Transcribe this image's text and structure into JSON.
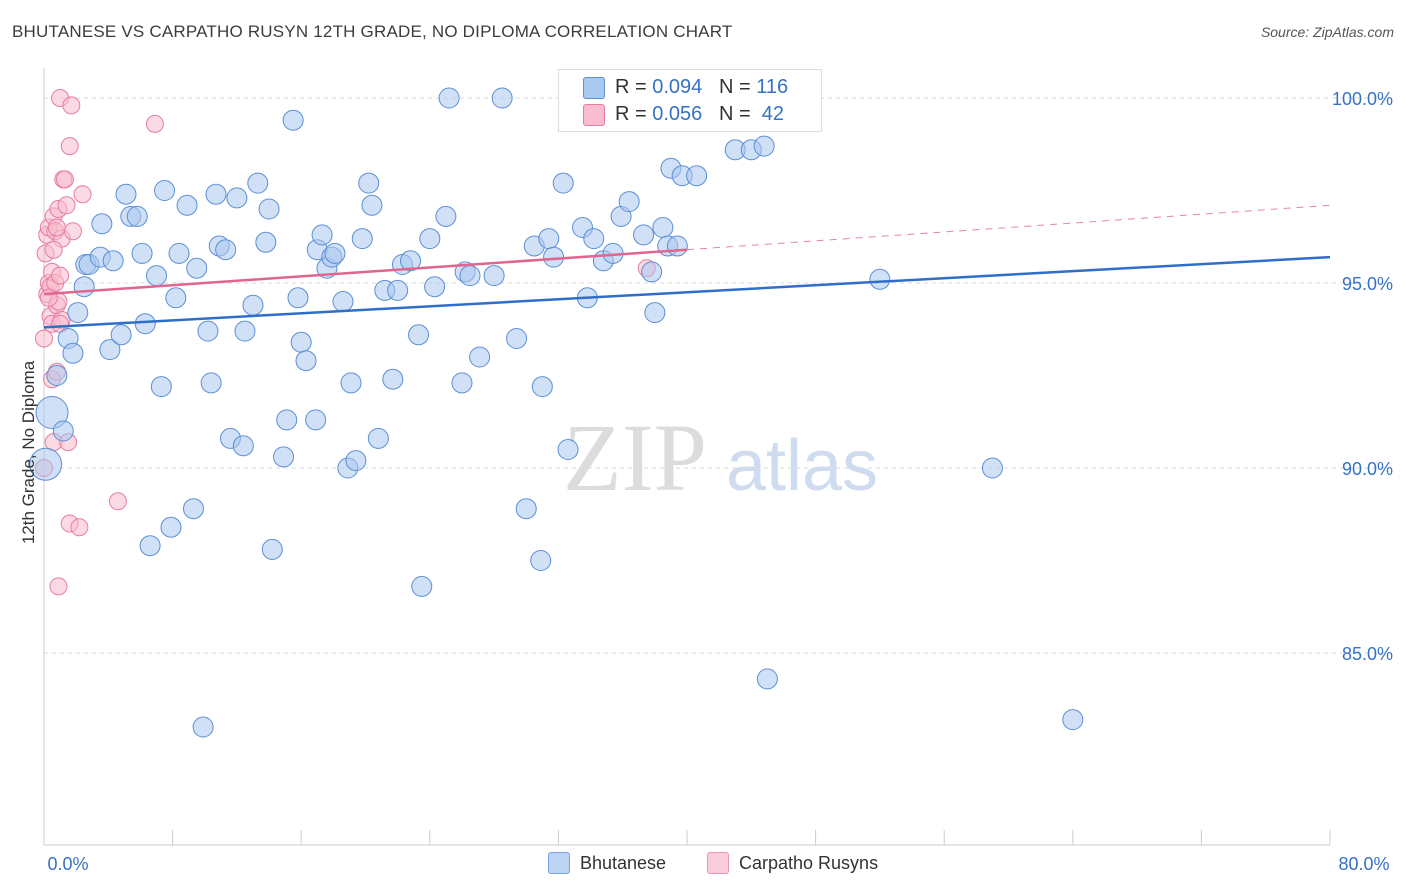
{
  "title": "BHUTANESE VS CARPATHO RUSYN 12TH GRADE, NO DIPLOMA CORRELATION CHART",
  "source": "Source: ZipAtlas.com",
  "watermark": {
    "zip": "ZIP",
    "atlas": "atlas"
  },
  "colors": {
    "blue_fill": "#a9c7ef",
    "blue_stroke": "#5b8fd6",
    "blue_line": "#2f6ec9",
    "pink_fill": "#f7bccd",
    "pink_stroke": "#e67e9f",
    "pink_line": "#e0668e",
    "axis_label": "#3572c6",
    "grid": "#d9d9d9"
  },
  "stats": {
    "r_label": "R =",
    "n_label": "N =",
    "rows": [
      {
        "series": "Bhutanese",
        "r": "0.094",
        "n": "116"
      },
      {
        "series": "Carpatho Rusyns",
        "r": "0.056",
        "n": " 42"
      }
    ]
  },
  "legend": {
    "items": [
      "Bhutanese",
      "Carpatho Rusyns"
    ]
  },
  "chart_data": {
    "type": "scatter",
    "title": "BHUTANESE VS CARPATHO RUSYN 12TH GRADE, NO DIPLOMA CORRELATION CHART",
    "xlabel": "",
    "ylabel": "12th Grade, No Diploma",
    "xlim": [
      0,
      80
    ],
    "ylim": [
      80.5,
      101
    ],
    "x_tick_labels": [
      "0.0%",
      "80.0%"
    ],
    "y_ticks": [
      85,
      90,
      95,
      100
    ],
    "y_tick_labels": [
      "85.0%",
      "90.0%",
      "95.0%",
      "100.0%"
    ],
    "grid": true,
    "legend_position": "bottom",
    "series": [
      {
        "name": "Bhutanese",
        "trend": {
          "x": [
            0,
            80
          ],
          "y": [
            93.8,
            95.7
          ]
        },
        "points": [
          [
            0.1,
            90.1
          ],
          [
            0.5,
            91.5
          ],
          [
            0.8,
            92.5
          ],
          [
            1.2,
            91.0
          ],
          [
            1.5,
            93.5
          ],
          [
            1.8,
            93.1
          ],
          [
            2.1,
            94.2
          ],
          [
            2.5,
            94.9
          ],
          [
            2.6,
            95.5
          ],
          [
            2.8,
            95.5
          ],
          [
            3.5,
            95.7
          ],
          [
            3.6,
            96.6
          ],
          [
            4.1,
            93.2
          ],
          [
            4.3,
            95.6
          ],
          [
            4.8,
            93.6
          ],
          [
            5.1,
            97.4
          ],
          [
            5.4,
            96.8
          ],
          [
            5.8,
            96.8
          ],
          [
            6.1,
            95.8
          ],
          [
            6.3,
            93.9
          ],
          [
            6.6,
            87.9
          ],
          [
            7.0,
            95.2
          ],
          [
            7.3,
            92.2
          ],
          [
            7.5,
            97.5
          ],
          [
            7.9,
            88.4
          ],
          [
            8.2,
            94.6
          ],
          [
            8.4,
            95.8
          ],
          [
            8.9,
            97.1
          ],
          [
            9.3,
            88.9
          ],
          [
            9.5,
            95.4
          ],
          [
            9.9,
            83.0
          ],
          [
            10.2,
            93.7
          ],
          [
            10.4,
            92.3
          ],
          [
            10.7,
            97.4
          ],
          [
            10.9,
            96.0
          ],
          [
            11.3,
            95.9
          ],
          [
            11.6,
            90.8
          ],
          [
            12.0,
            97.3
          ],
          [
            12.4,
            90.6
          ],
          [
            12.5,
            93.7
          ],
          [
            13.0,
            94.4
          ],
          [
            13.3,
            97.7
          ],
          [
            13.8,
            96.1
          ],
          [
            14.0,
            97.0
          ],
          [
            14.2,
            87.8
          ],
          [
            14.9,
            90.3
          ],
          [
            15.1,
            91.3
          ],
          [
            15.5,
            99.4
          ],
          [
            15.8,
            94.6
          ],
          [
            16.0,
            93.4
          ],
          [
            16.3,
            92.9
          ],
          [
            16.9,
            91.3
          ],
          [
            17.0,
            95.9
          ],
          [
            17.3,
            96.3
          ],
          [
            17.6,
            95.4
          ],
          [
            17.9,
            95.7
          ],
          [
            18.1,
            95.8
          ],
          [
            18.6,
            94.5
          ],
          [
            18.9,
            90.0
          ],
          [
            19.1,
            92.3
          ],
          [
            19.4,
            90.2
          ],
          [
            19.8,
            96.2
          ],
          [
            20.2,
            97.7
          ],
          [
            20.4,
            97.1
          ],
          [
            20.8,
            90.8
          ],
          [
            21.2,
            94.8
          ],
          [
            21.7,
            92.4
          ],
          [
            22.0,
            94.8
          ],
          [
            22.3,
            95.5
          ],
          [
            22.8,
            95.6
          ],
          [
            23.3,
            93.6
          ],
          [
            23.5,
            86.8
          ],
          [
            24.0,
            96.2
          ],
          [
            24.3,
            94.9
          ],
          [
            25.0,
            96.8
          ],
          [
            25.2,
            100.0
          ],
          [
            26.0,
            92.3
          ],
          [
            26.2,
            95.3
          ],
          [
            26.5,
            95.2
          ],
          [
            27.1,
            93.0
          ],
          [
            28.0,
            95.2
          ],
          [
            28.5,
            100.0
          ],
          [
            29.4,
            93.5
          ],
          [
            30.0,
            88.9
          ],
          [
            30.5,
            96.0
          ],
          [
            30.9,
            87.5
          ],
          [
            31.0,
            92.2
          ],
          [
            31.4,
            96.2
          ],
          [
            31.7,
            95.7
          ],
          [
            32.3,
            97.7
          ],
          [
            32.6,
            90.5
          ],
          [
            33.5,
            96.5
          ],
          [
            33.8,
            94.6
          ],
          [
            34.2,
            96.2
          ],
          [
            34.8,
            95.6
          ],
          [
            35.4,
            95.8
          ],
          [
            35.9,
            96.8
          ],
          [
            36.4,
            97.2
          ],
          [
            37.3,
            96.3
          ],
          [
            37.8,
            95.3
          ],
          [
            38.0,
            94.2
          ],
          [
            38.5,
            96.5
          ],
          [
            38.8,
            96.0
          ],
          [
            39.4,
            96.0
          ],
          [
            39.0,
            98.1
          ],
          [
            39.7,
            97.9
          ],
          [
            40.6,
            97.9
          ],
          [
            43.0,
            98.6
          ],
          [
            43.6,
            100.0
          ],
          [
            44.0,
            98.6
          ],
          [
            44.8,
            98.7
          ],
          [
            45.3,
            100.0
          ],
          [
            45.0,
            84.3
          ],
          [
            52.0,
            95.1
          ],
          [
            59.0,
            90.0
          ],
          [
            64.0,
            83.2
          ]
        ]
      },
      {
        "name": "Carpatho Rusyns",
        "trend": {
          "x": [
            0,
            40
          ],
          "y": [
            94.7,
            95.9
          ],
          "dashed_to": {
            "x": 80,
            "y": 97.1
          }
        },
        "points": [
          [
            0.0,
            93.5
          ],
          [
            0.0,
            90.0
          ],
          [
            0.1,
            95.8
          ],
          [
            0.2,
            96.3
          ],
          [
            0.2,
            94.7
          ],
          [
            0.3,
            95.0
          ],
          [
            0.3,
            96.5
          ],
          [
            0.4,
            94.9
          ],
          [
            0.4,
            94.1
          ],
          [
            0.5,
            95.3
          ],
          [
            0.5,
            93.9
          ],
          [
            0.5,
            92.4
          ],
          [
            0.6,
            96.8
          ],
          [
            0.6,
            90.7
          ],
          [
            0.7,
            96.4
          ],
          [
            0.7,
            95.0
          ],
          [
            0.8,
            94.4
          ],
          [
            0.8,
            92.6
          ],
          [
            0.9,
            97.0
          ],
          [
            0.9,
            94.5
          ],
          [
            0.9,
            86.8
          ],
          [
            1.0,
            95.2
          ],
          [
            1.0,
            100.0
          ],
          [
            1.1,
            96.2
          ],
          [
            1.1,
            94.0
          ],
          [
            1.2,
            97.8
          ],
          [
            1.3,
            97.8
          ],
          [
            1.4,
            97.1
          ],
          [
            1.5,
            90.7
          ],
          [
            1.6,
            98.7
          ],
          [
            1.6,
            88.5
          ],
          [
            1.7,
            99.8
          ],
          [
            1.8,
            96.4
          ],
          [
            2.2,
            88.4
          ],
          [
            2.4,
            97.4
          ],
          [
            4.6,
            89.1
          ],
          [
            6.9,
            99.3
          ],
          [
            37.5,
            95.4
          ],
          [
            0.3,
            94.6
          ],
          [
            0.6,
            95.9
          ],
          [
            0.8,
            96.5
          ],
          [
            1.0,
            93.9
          ]
        ]
      }
    ]
  }
}
